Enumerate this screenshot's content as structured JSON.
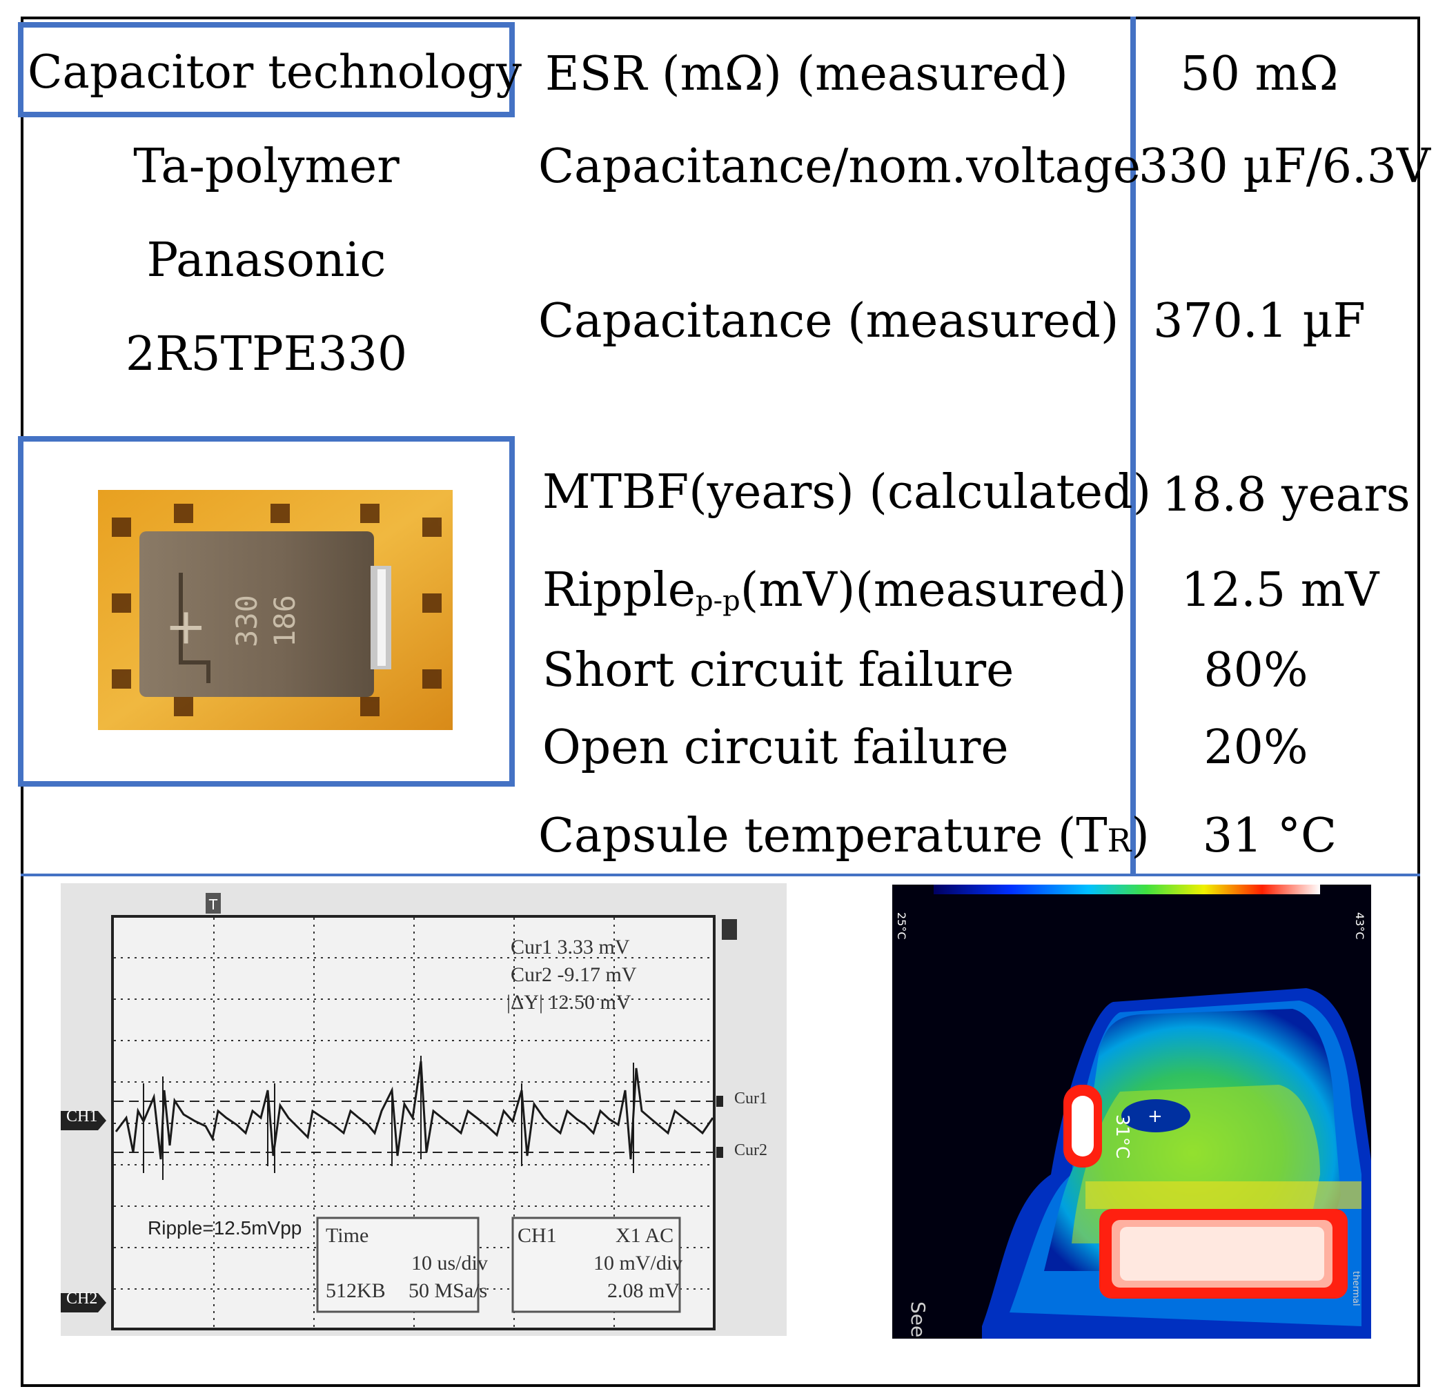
{
  "table": {
    "header_left": "Capacitor technology",
    "rows": [
      {
        "label": "ESR (mΩ) (measured)",
        "value": "50 mΩ"
      },
      {
        "label": "Capacitance/nom.voltage",
        "value": "330 µF/6.3V"
      },
      {
        "label": "Capacitance (measured)",
        "value": "370.1 µF"
      },
      {
        "label": "MTBF(years) (calculated)",
        "value": "18.8 years"
      },
      {
        "label_main": "Ripple",
        "label_sub": "p-p",
        "label_tail": "(mV)(measured)",
        "value": "12.5 mV"
      },
      {
        "label": "Short circuit failure",
        "value": "80%"
      },
      {
        "label": "Open circuit failure",
        "value": "20%"
      },
      {
        "label_main": "Capsule temperature (T",
        "label_sub": "R",
        "label_tail": ")",
        "value": "31 °C"
      }
    ],
    "technology_lines": [
      "Ta-polymer",
      "Panasonic",
      "2R5TPE330"
    ]
  },
  "capacitor_photo": {
    "marking_line1": "330",
    "marking_line2": "186",
    "polarity": "+"
  },
  "scope": {
    "trigger_marker": "T",
    "cursor1": "Cur1  3.33 mV",
    "cursor2": "Cur2  -9.17 mV",
    "delta": "|ΔY|  12.50 mV",
    "cur1_tag": "Cur1",
    "cur2_tag": "Cur2",
    "ch1_tag": "CH1",
    "ch2_tag": "CH2",
    "ripple_label": "Ripple=12.5mVpp",
    "time_box": {
      "title": "Time",
      "div": "10 us/div",
      "mem": "512KB",
      "rate": "50 MSa/s"
    },
    "ch_box": {
      "title": "CH1",
      "coupling": "X1  AC",
      "div": "10 mV/div",
      "value": "2.08 mV"
    }
  },
  "thermal": {
    "scale_min": "25°C",
    "scale_max": "43°C",
    "spot_temp": "31°C",
    "brand": "SeeK",
    "brand_sub": "thermal"
  },
  "colors": {
    "accent_blue": "#4472c4"
  }
}
